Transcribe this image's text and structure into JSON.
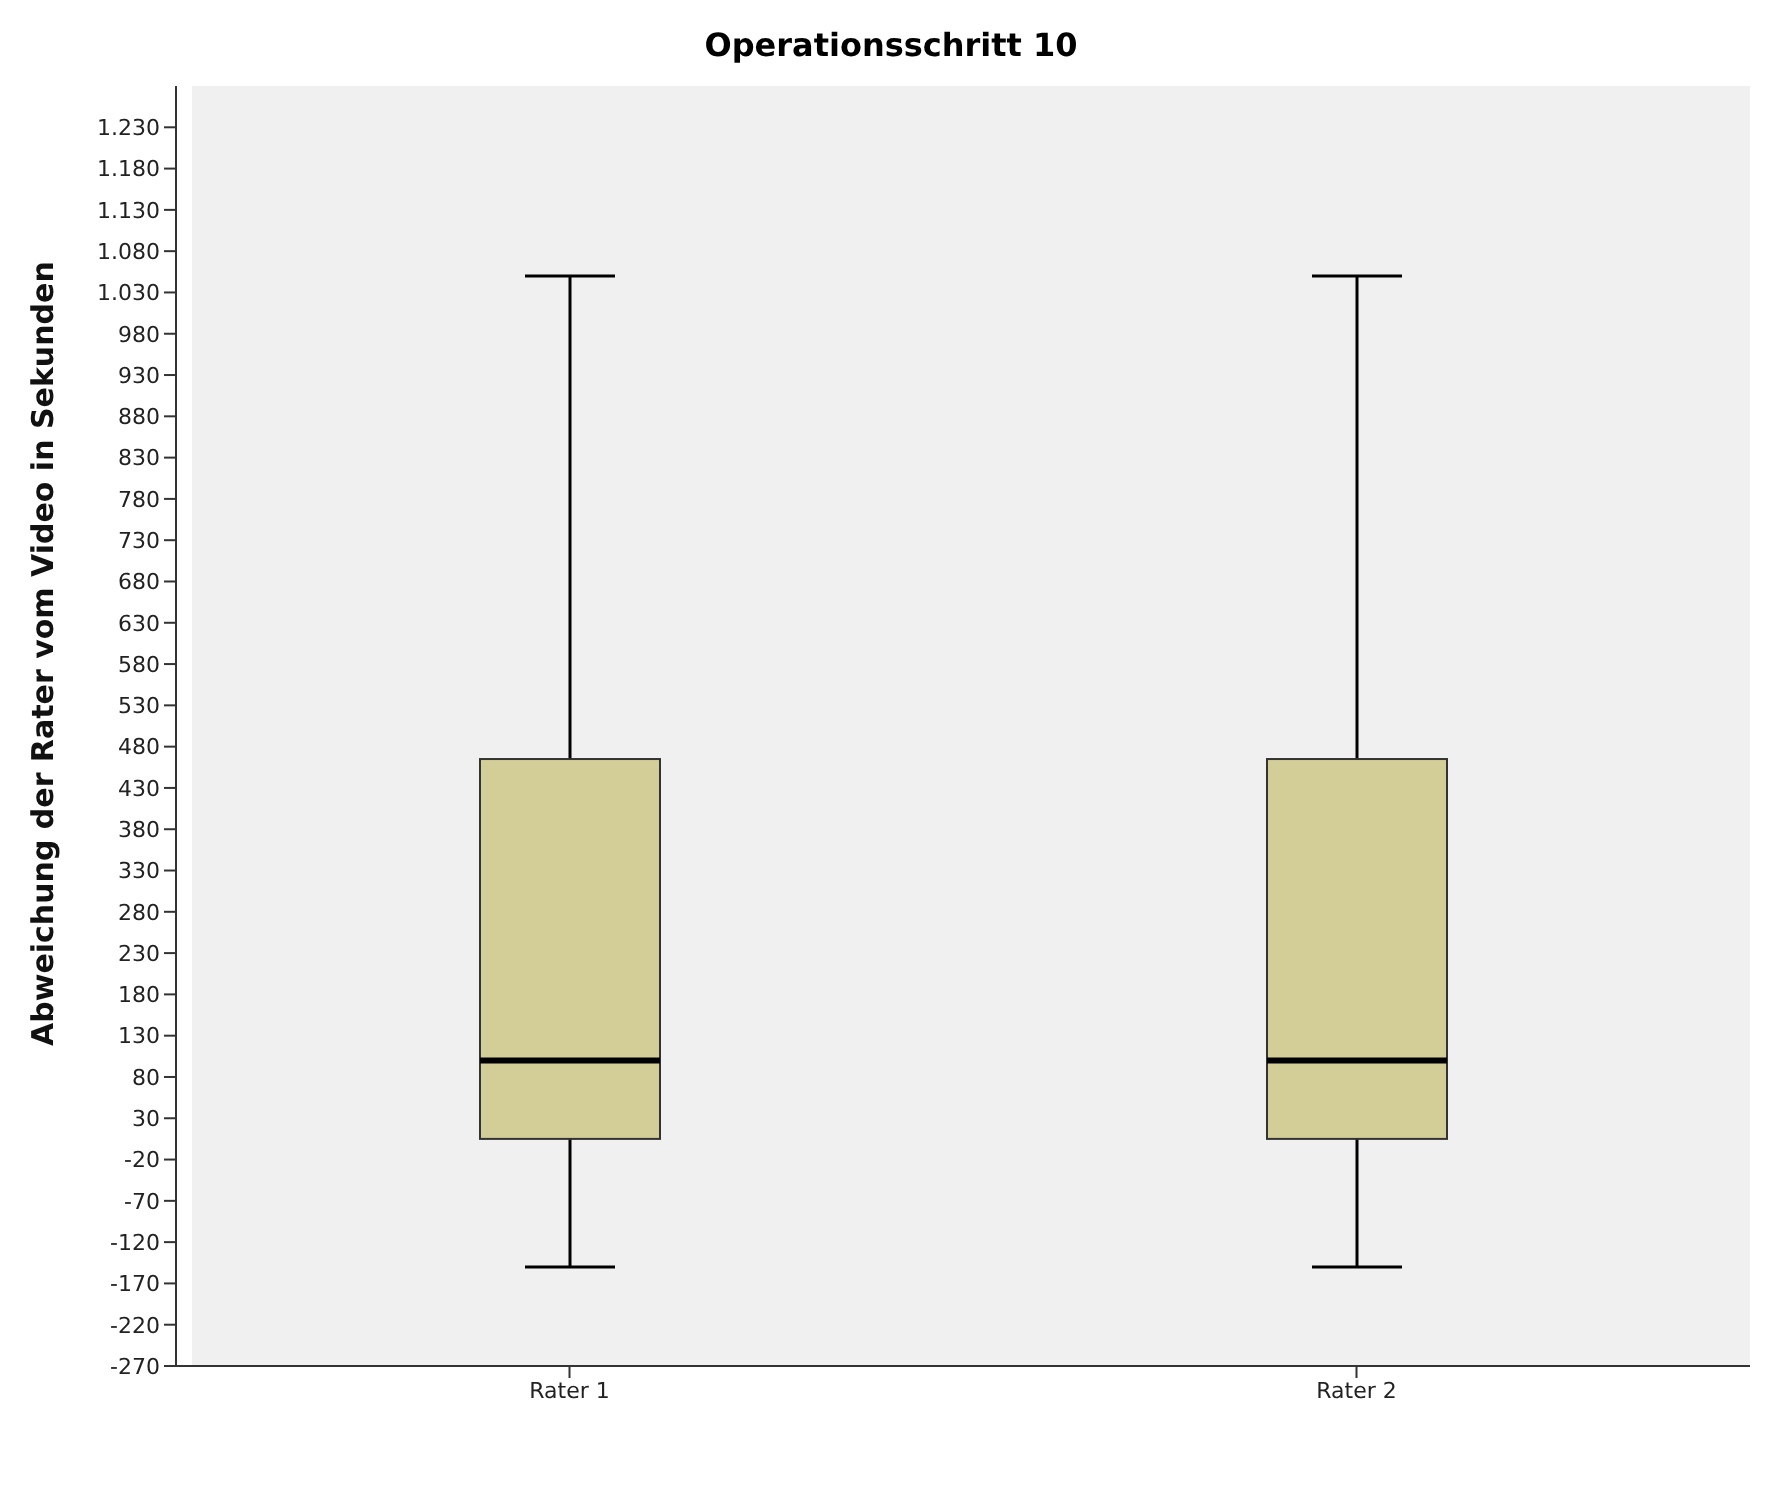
{
  "chart_data": {
    "type": "box",
    "title": "Operationsschritt 10",
    "ylabel": "Abweichung der Rater vom Video in Sekunden",
    "categories": [
      "Rater 1",
      "Rater 2"
    ],
    "series": [
      {
        "color": "#d3cd98",
        "boxes": [
          {
            "low": -150,
            "q1": 5,
            "median": 100,
            "q3": 465,
            "high": 1050
          },
          {
            "low": -150,
            "q1": 5,
            "median": 100,
            "q3": 465,
            "high": 1050
          }
        ]
      }
    ],
    "ylim": [
      -270,
      1280
    ],
    "yticks": [
      -270,
      -220,
      -170,
      -120,
      -70,
      -20,
      30,
      80,
      130,
      180,
      230,
      280,
      330,
      380,
      430,
      480,
      530,
      580,
      630,
      680,
      730,
      780,
      830,
      880,
      930,
      980,
      {
        "value": 1030,
        "label": "1.030"
      },
      {
        "value": 1080,
        "label": "1.080"
      },
      {
        "value": 1130,
        "label": "1.130"
      },
      {
        "value": 1180,
        "label": "1.180"
      },
      {
        "value": 1230,
        "label": "1.230"
      }
    ],
    "grid": false
  }
}
